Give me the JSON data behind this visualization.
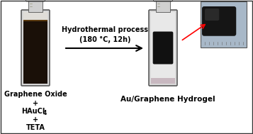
{
  "fig_width": 3.57,
  "fig_height": 1.89,
  "dpi": 100,
  "bg_color": "#ffffff",
  "arrow_text_line1": "Hydrothermal process",
  "arrow_text_line2": "(180 °C, 12h)",
  "left_label_line1": "Graphene Oxide",
  "left_label_line2": "+",
  "left_label_line3": "HAuCl",
  "left_label_line3_sub": "4",
  "left_label_line4": "+",
  "left_label_line5": "TETA",
  "right_label": "Au/Graphene Hydrogel",
  "label_fontsize": 7,
  "arrow_text_fontsize": 7,
  "border_color": "#999999",
  "border_color_dark": "#555555"
}
